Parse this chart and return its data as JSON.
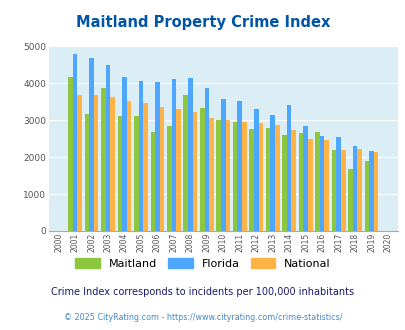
{
  "title": "Maitland Property Crime Index",
  "subtitle": "Crime Index corresponds to incidents per 100,000 inhabitants",
  "footer": "© 2025 CityRating.com - https://www.cityrating.com/crime-statistics/",
  "years": [
    2000,
    2001,
    2002,
    2003,
    2004,
    2005,
    2006,
    2007,
    2008,
    2009,
    2010,
    2011,
    2012,
    2013,
    2014,
    2015,
    2016,
    2017,
    2018,
    2019,
    2020
  ],
  "maitland": [
    0,
    4180,
    3170,
    3880,
    3110,
    3110,
    2680,
    2830,
    3670,
    3330,
    3000,
    2950,
    2760,
    2790,
    2600,
    2650,
    2680,
    2180,
    1670,
    1900,
    0
  ],
  "florida": [
    0,
    4790,
    4680,
    4490,
    4180,
    4050,
    4030,
    4100,
    4150,
    3870,
    3570,
    3510,
    3290,
    3130,
    3420,
    2840,
    2560,
    2530,
    2310,
    2160,
    0
  ],
  "national": [
    0,
    3670,
    3670,
    3620,
    3530,
    3450,
    3360,
    3290,
    3230,
    3050,
    2990,
    2960,
    2910,
    2860,
    2720,
    2490,
    2460,
    2200,
    2220,
    2140,
    0
  ],
  "maitland_color": "#8dc63f",
  "florida_color": "#4da6ff",
  "national_color": "#ffb347",
  "bg_color": "#dceef5",
  "ylim": [
    0,
    5000
  ],
  "yticks": [
    0,
    1000,
    2000,
    3000,
    4000,
    5000
  ],
  "title_color": "#0055a5",
  "subtitle_color": "#1a1a6e",
  "footer_color": "#4488cc"
}
